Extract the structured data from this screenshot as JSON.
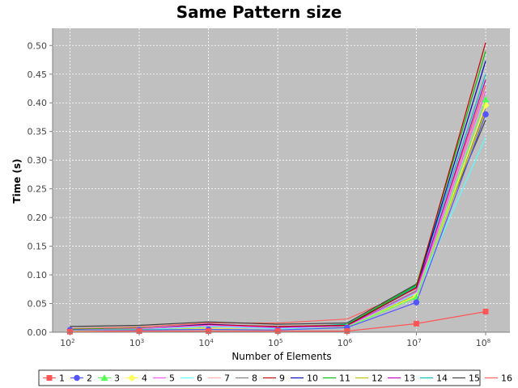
{
  "chart_data": {
    "type": "line",
    "title": "Same Pattern size",
    "xlabel": "Number of Elements",
    "ylabel": "Time (s)",
    "x": [
      100,
      1000,
      10000,
      100000,
      1000000,
      10000000,
      100000000
    ],
    "x_scale": "log",
    "x_tick_labels": [
      {
        "base": "10",
        "exp": "2"
      },
      {
        "base": "10",
        "exp": "3"
      },
      {
        "base": "10",
        "exp": "4"
      },
      {
        "base": "10",
        "exp": "5"
      },
      {
        "base": "10",
        "exp": "6"
      },
      {
        "base": "10",
        "exp": "7"
      },
      {
        "base": "10",
        "exp": "8"
      }
    ],
    "ylim": [
      0,
      0.53
    ],
    "y_ticks": [
      "0.00",
      "0.05",
      "0.10",
      "0.15",
      "0.20",
      "0.25",
      "0.30",
      "0.35",
      "0.40",
      "0.45",
      "0.50"
    ],
    "grid": true,
    "plot_background": "#c0c0c0",
    "legend_position": "bottom",
    "series": [
      {
        "name": "1",
        "color": "#ff5555",
        "marker": "square",
        "values": [
          0.001,
          0.002,
          0.002,
          0.002,
          0.002,
          0.015,
          0.036
        ]
      },
      {
        "name": "2",
        "color": "#5555ff",
        "marker": "circle",
        "values": [
          0.004,
          0.004,
          0.005,
          0.004,
          0.008,
          0.052,
          0.38
        ]
      },
      {
        "name": "3",
        "color": "#55ff55",
        "marker": "triangle",
        "values": [
          0.004,
          0.005,
          0.005,
          0.004,
          0.009,
          0.061,
          0.406
        ]
      },
      {
        "name": "4",
        "color": "#ffff55",
        "marker": "diamond",
        "values": [
          0.003,
          0.004,
          0.006,
          0.004,
          0.009,
          0.063,
          0.396
        ]
      },
      {
        "name": "5",
        "color": "#ff55ff",
        "marker": "none",
        "values": [
          0.004,
          0.006,
          0.012,
          0.008,
          0.01,
          0.07,
          0.42
        ]
      },
      {
        "name": "6",
        "color": "#55ffff",
        "marker": "none",
        "values": [
          0.003,
          0.005,
          0.01,
          0.006,
          0.01,
          0.068,
          0.34
        ]
      },
      {
        "name": "7",
        "color": "#ffafaf",
        "marker": "none",
        "values": [
          0.003,
          0.005,
          0.009,
          0.005,
          0.009,
          0.07,
          0.4
        ]
      },
      {
        "name": "8",
        "color": "#808080",
        "marker": "none",
        "values": [
          0.004,
          0.006,
          0.01,
          0.006,
          0.01,
          0.072,
          0.39
        ]
      },
      {
        "name": "9",
        "color": "#c00000",
        "marker": "none",
        "values": [
          0.004,
          0.006,
          0.013,
          0.01,
          0.012,
          0.078,
          0.505
        ]
      },
      {
        "name": "10",
        "color": "#0000c0",
        "marker": "none",
        "values": [
          0.004,
          0.006,
          0.014,
          0.009,
          0.012,
          0.078,
          0.473
        ]
      },
      {
        "name": "11",
        "color": "#00c000",
        "marker": "none",
        "values": [
          0.005,
          0.007,
          0.01,
          0.006,
          0.013,
          0.082,
          0.49
        ]
      },
      {
        "name": "12",
        "color": "#c0c000",
        "marker": "none",
        "values": [
          0.003,
          0.005,
          0.008,
          0.005,
          0.009,
          0.065,
          0.385
        ]
      },
      {
        "name": "13",
        "color": "#c000c0",
        "marker": "none",
        "values": [
          0.004,
          0.006,
          0.012,
          0.008,
          0.011,
          0.072,
          0.44
        ]
      },
      {
        "name": "14",
        "color": "#00c0c0",
        "marker": "none",
        "values": [
          0.004,
          0.006,
          0.011,
          0.007,
          0.014,
          0.08,
          0.45
        ]
      },
      {
        "name": "15",
        "color": "#404040",
        "marker": "none",
        "values": [
          0.01,
          0.012,
          0.018,
          0.014,
          0.016,
          0.084,
          0.37
        ]
      },
      {
        "name": "16",
        "color": "#ff6060",
        "marker": "none",
        "values": [
          0.006,
          0.009,
          0.016,
          0.016,
          0.023,
          0.076,
          0.43
        ]
      }
    ]
  }
}
